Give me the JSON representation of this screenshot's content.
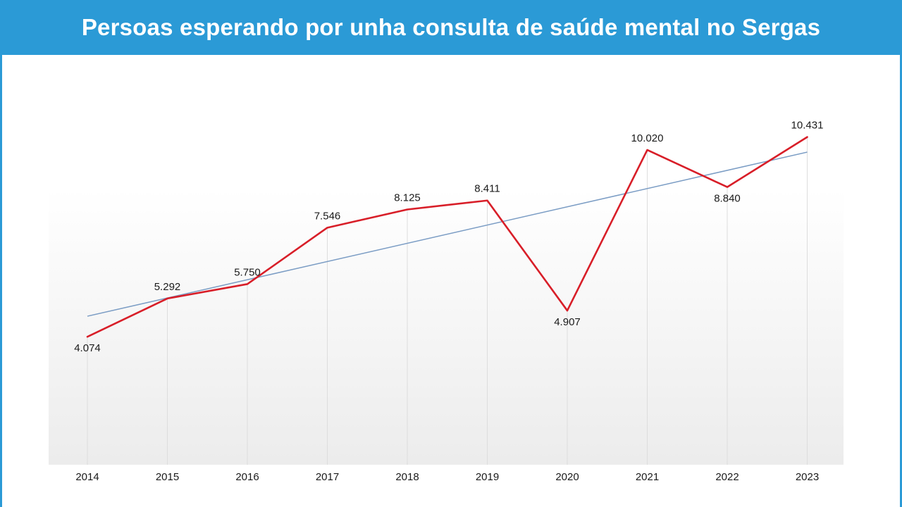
{
  "chart_data": {
    "type": "line",
    "title": "Persoas esperando por unha consulta de saúde mental no Sergas",
    "categories": [
      "2014",
      "2015",
      "2016",
      "2017",
      "2018",
      "2019",
      "2020",
      "2021",
      "2022",
      "2023"
    ],
    "values": [
      4074,
      5292,
      5750,
      7546,
      8125,
      8411,
      4907,
      10020,
      8840,
      10431
    ],
    "value_labels": [
      "4.074",
      "5.292",
      "5.750",
      "7.546",
      "8.125",
      "8.411",
      "4.907",
      "10.020",
      "8.840",
      "10.431"
    ],
    "label_position": [
      "below",
      "above",
      "above",
      "above",
      "above",
      "above",
      "below",
      "above",
      "below",
      "above"
    ],
    "trend_line": true,
    "ylim": [
      0,
      11700
    ],
    "grid": "vertical",
    "colors": {
      "line": "#d81e28",
      "trend": "#7a9cc4",
      "grid": "#dddddd",
      "header": "#2b9ad6"
    }
  }
}
